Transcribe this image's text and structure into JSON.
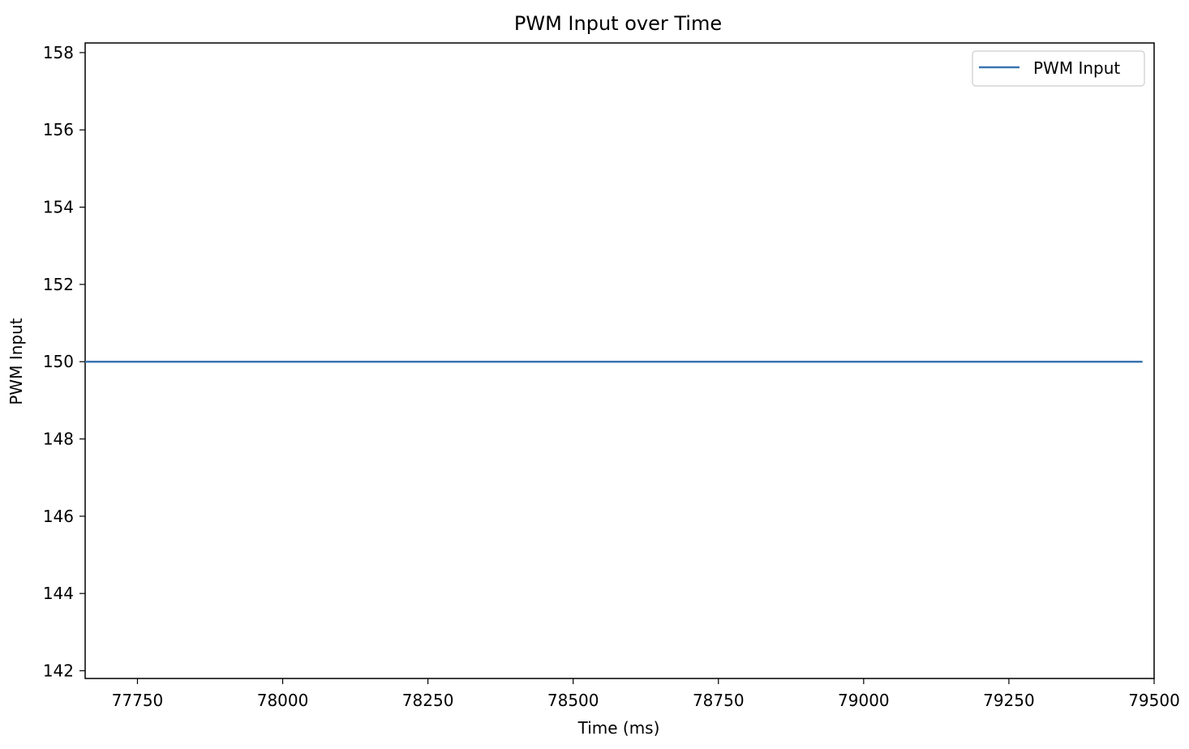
{
  "chart_data": {
    "type": "line",
    "title": "PWM Input over Time",
    "xlabel": "Time (ms)",
    "ylabel": "PWM Input",
    "xlim": [
      77660,
      79500
    ],
    "ylim": [
      141.8,
      158.25
    ],
    "xticks": [
      77750,
      78000,
      78250,
      78500,
      78750,
      79000,
      79250,
      79500
    ],
    "yticks": [
      142,
      144,
      146,
      148,
      150,
      152,
      154,
      156,
      158
    ],
    "series": [
      {
        "name": "PWM Input",
        "color": "#3a75b0",
        "x": [
          77660,
          79480
        ],
        "y": [
          150,
          150
        ]
      }
    ],
    "legend": {
      "placement": "top-right"
    },
    "grid": false
  }
}
